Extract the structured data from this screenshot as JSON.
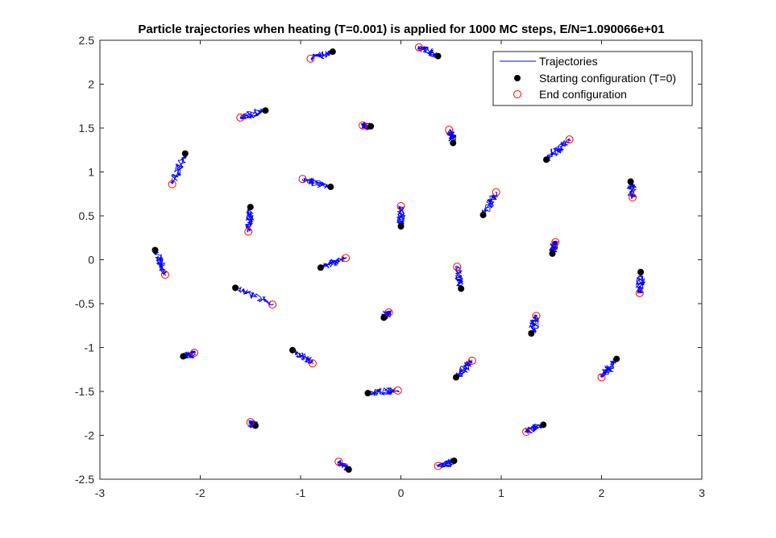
{
  "chart_data": {
    "type": "scatter",
    "title": "Particle trajectories when heating (T=0.001) is applied for 1000 MC steps, E/N=1.090066e+01",
    "xlabel": "",
    "ylabel": "",
    "xlim": [
      -3,
      3
    ],
    "ylim": [
      -2.5,
      2.5
    ],
    "xticks": [
      -3,
      -2,
      -1,
      0,
      1,
      2,
      3
    ],
    "yticks": [
      -2.5,
      -2,
      -1.5,
      -1,
      -0.5,
      0,
      0.5,
      1,
      1.5,
      2,
      2.5
    ],
    "xtick_labels": [
      "-3",
      "-2",
      "-1",
      "0",
      "1",
      "2",
      "3"
    ],
    "ytick_labels": [
      "-2.5",
      "-2",
      "-1.5",
      "-1",
      "-0.5",
      "0",
      "0.5",
      "1",
      "1.5",
      "2",
      "2.5"
    ],
    "grid": false,
    "legend_position": "top-right",
    "series": [
      {
        "name": "Trajectories",
        "style": "line",
        "color": "#0000ff"
      },
      {
        "name": "Starting configuration (T=0)",
        "style": "filled-circle",
        "color": "#000000"
      },
      {
        "name": "End configuration",
        "style": "open-circle",
        "color": "#ff0000"
      }
    ],
    "particles": [
      {
        "start": [
          -0.68,
          2.37
        ],
        "end": [
          -0.9,
          2.29
        ]
      },
      {
        "start": [
          0.37,
          2.32
        ],
        "end": [
          0.18,
          2.42
        ]
      },
      {
        "start": [
          -1.35,
          1.7
        ],
        "end": [
          -1.6,
          1.62
        ]
      },
      {
        "start": [
          -0.3,
          1.52
        ],
        "end": [
          -0.38,
          1.53
        ]
      },
      {
        "start": [
          0.52,
          1.33
        ],
        "end": [
          0.48,
          1.48
        ]
      },
      {
        "start": [
          1.45,
          1.14
        ],
        "end": [
          1.68,
          1.37
        ]
      },
      {
        "start": [
          -2.15,
          1.21
        ],
        "end": [
          -2.28,
          0.86
        ]
      },
      {
        "start": [
          -0.7,
          0.83
        ],
        "end": [
          -0.98,
          0.92
        ]
      },
      {
        "start": [
          0.0,
          0.38
        ],
        "end": [
          0.0,
          0.61
        ]
      },
      {
        "start": [
          0.82,
          0.51
        ],
        "end": [
          0.95,
          0.77
        ]
      },
      {
        "start": [
          2.29,
          0.89
        ],
        "end": [
          2.31,
          0.71
        ]
      },
      {
        "start": [
          -1.5,
          0.6
        ],
        "end": [
          -1.52,
          0.32
        ]
      },
      {
        "start": [
          -2.45,
          0.11
        ],
        "end": [
          -2.35,
          -0.17
        ]
      },
      {
        "start": [
          -0.8,
          -0.09
        ],
        "end": [
          -0.55,
          0.02
        ]
      },
      {
        "start": [
          0.6,
          -0.33
        ],
        "end": [
          0.56,
          -0.08
        ]
      },
      {
        "start": [
          1.51,
          0.07
        ],
        "end": [
          1.54,
          0.2
        ]
      },
      {
        "start": [
          2.39,
          -0.14
        ],
        "end": [
          2.38,
          -0.38
        ]
      },
      {
        "start": [
          -1.65,
          -0.32
        ],
        "end": [
          -1.28,
          -0.51
        ]
      },
      {
        "start": [
          -0.17,
          -0.66
        ],
        "end": [
          -0.12,
          -0.6
        ]
      },
      {
        "start": [
          1.3,
          -0.84
        ],
        "end": [
          1.35,
          -0.64
        ]
      },
      {
        "start": [
          -2.17,
          -1.1
        ],
        "end": [
          -2.06,
          -1.06
        ]
      },
      {
        "start": [
          -1.08,
          -1.03
        ],
        "end": [
          -0.88,
          -1.18
        ]
      },
      {
        "start": [
          0.55,
          -1.34
        ],
        "end": [
          0.71,
          -1.15
        ]
      },
      {
        "start": [
          2.15,
          -1.13
        ],
        "end": [
          2.0,
          -1.34
        ]
      },
      {
        "start": [
          -0.33,
          -1.52
        ],
        "end": [
          -0.03,
          -1.49
        ]
      },
      {
        "start": [
          -1.45,
          -1.89
        ],
        "end": [
          -1.5,
          -1.85
        ]
      },
      {
        "start": [
          1.42,
          -1.88
        ],
        "end": [
          1.25,
          -1.96
        ]
      },
      {
        "start": [
          -0.52,
          -2.39
        ],
        "end": [
          -0.62,
          -2.3
        ]
      },
      {
        "start": [
          0.53,
          -2.29
        ],
        "end": [
          0.37,
          -2.35
        ]
      }
    ]
  }
}
